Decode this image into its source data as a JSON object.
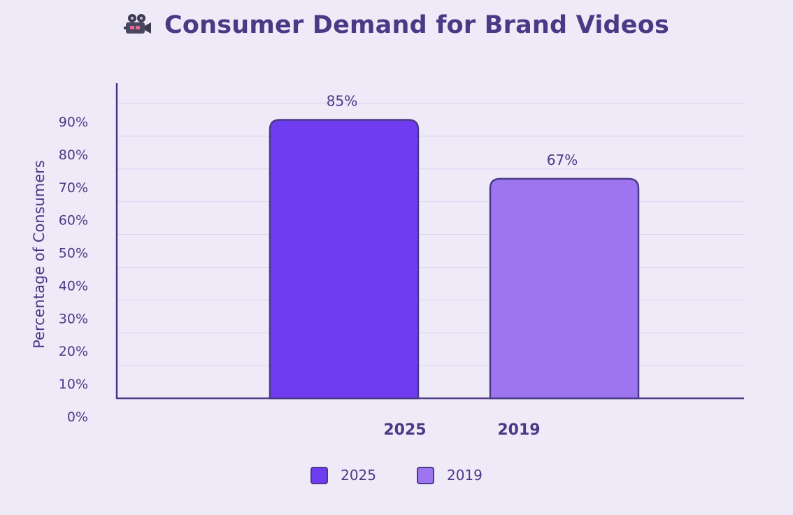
{
  "header": {
    "icon": "movie-camera-icon",
    "title": "Consumer Demand for Brand Videos"
  },
  "colors": {
    "background": "#efeaf8",
    "text": "#4a3a86",
    "axis": "#4a3a86",
    "grid": "#dcd3f2",
    "series_2025": "#6f3cf2",
    "series_2019": "#9e75f0"
  },
  "chart_data": {
    "type": "bar",
    "title": "Consumer Demand for Brand Videos",
    "ylabel": "Percentage of Consumers",
    "xlabel": "",
    "ylim": [
      0,
      90
    ],
    "yticks": [
      "0%",
      "10%",
      "20%",
      "30%",
      "40%",
      "50%",
      "60%",
      "70%",
      "80%",
      "90%"
    ],
    "grid": true,
    "categories": [
      "2025",
      "2019"
    ],
    "values": [
      85,
      67
    ],
    "data_labels": [
      "85%",
      "67%"
    ],
    "legend_position": "bottom",
    "legend": [
      {
        "label": "2025",
        "color": "#6f3cf2"
      },
      {
        "label": "2019",
        "color": "#9e75f0"
      }
    ]
  }
}
